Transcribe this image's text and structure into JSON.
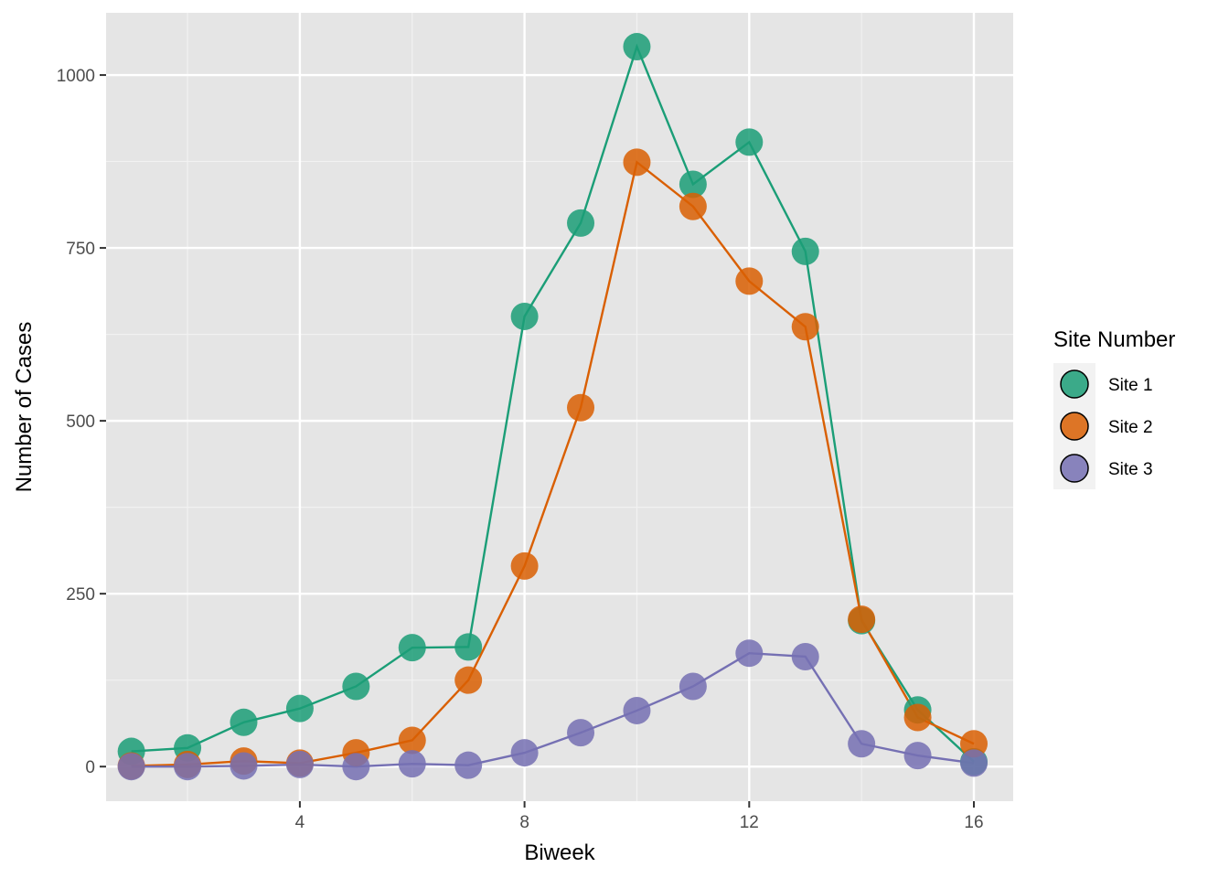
{
  "chart_data": {
    "type": "line",
    "xlabel": "Biweek",
    "ylabel": "Number of Cases",
    "xlim": [
      0.55,
      16.7
    ],
    "ylim": [
      -50,
      1090
    ],
    "x_ticks": [
      4,
      8,
      12,
      16
    ],
    "y_ticks": [
      0,
      250,
      500,
      750,
      1000
    ],
    "grid": true,
    "legend": {
      "title": "Site Number",
      "position": "right"
    },
    "x": [
      1,
      2,
      3,
      4,
      5,
      6,
      7,
      8,
      9,
      10,
      11,
      12,
      13,
      14,
      15,
      16
    ],
    "series": [
      {
        "name": "Site 1",
        "color": "#1b9e77",
        "values": [
          22,
          27,
          64,
          84,
          116,
          172,
          173,
          651,
          786,
          1041,
          842,
          903,
          745,
          211,
          82,
          7
        ]
      },
      {
        "name": "Site 2",
        "color": "#d95f02",
        "values": [
          1,
          3,
          8,
          5,
          20,
          38,
          125,
          290,
          519,
          874,
          810,
          702,
          636,
          213,
          71,
          33
        ]
      },
      {
        "name": "Site 3",
        "color": "#7570b3",
        "values": [
          0,
          0,
          1,
          3,
          0,
          4,
          2,
          20,
          49,
          81,
          116,
          164,
          159,
          33,
          16,
          5
        ]
      }
    ]
  }
}
